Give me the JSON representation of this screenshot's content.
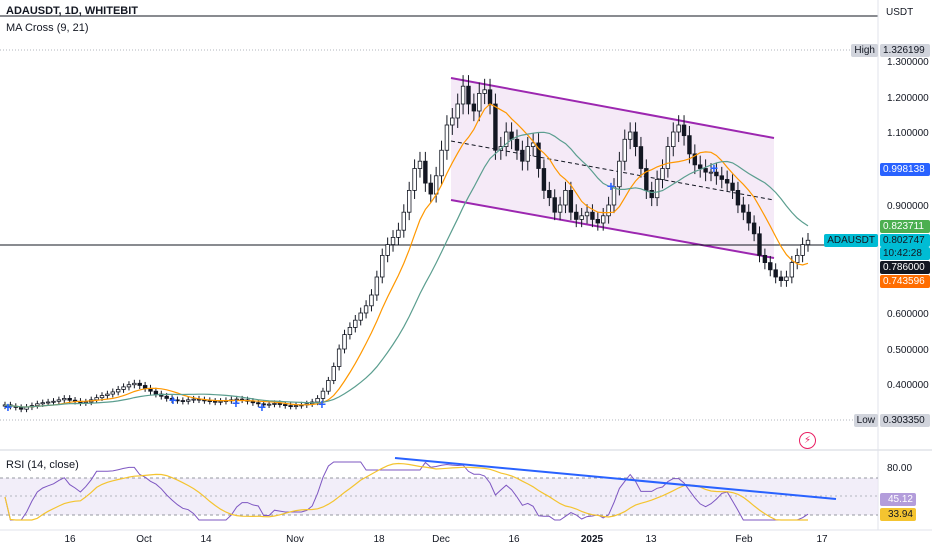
{
  "header": {
    "symbol_line": "ADAUSDT, 1D, WHITEBIT",
    "indicator_line": "MA Cross (9, 21)",
    "rsi_line": "RSI (14, close)",
    "currency": "USDT"
  },
  "colors": {
    "candle": "#131722",
    "ma_fast": "#ff9800",
    "ma_slow": "#5b9e8f",
    "channel_line": "#9c27b0",
    "channel_fill": "#f3e5f5",
    "rsi_line": "#7e57c2",
    "rsi_ma": "#f4c430",
    "trendline": "#2962ff",
    "cross_marker": "#2962ff"
  },
  "chart_data": {
    "type": "candlestick",
    "x_tick_labels": [
      "16",
      "Oct",
      "14",
      "Nov",
      "18",
      "Dec",
      "16",
      "2025",
      "13",
      "Feb",
      "17"
    ],
    "y_tick_labels": [
      "1.300000",
      "1.200000",
      "1.100000",
      "0.900000",
      "0.600000",
      "0.500000",
      "0.400000"
    ],
    "price_tags": [
      {
        "label": "High",
        "value": "1.326199"
      },
      {
        "label": "",
        "value": "0.998138"
      },
      {
        "label": "",
        "value": "0.823711"
      },
      {
        "label": "ADAUSDT",
        "value": "0.802747"
      },
      {
        "label": "",
        "value": "10:42:28"
      },
      {
        "label": "",
        "value": "0.786000"
      },
      {
        "label": "",
        "value": "0.743596"
      },
      {
        "label": "Low",
        "value": "0.303350"
      }
    ],
    "ma_cross": {
      "fast_period": 9,
      "slow_period": 21
    },
    "rsi": {
      "period": 14,
      "y_tick_labels": [
        "80.00"
      ],
      "value_tags": [
        "45.12",
        "33.94"
      ]
    },
    "candles_close": [
      0.342,
      0.338,
      0.335,
      0.33,
      0.336,
      0.34,
      0.345,
      0.348,
      0.35,
      0.352,
      0.356,
      0.36,
      0.355,
      0.352,
      0.348,
      0.35,
      0.356,
      0.362,
      0.368,
      0.372,
      0.378,
      0.385,
      0.392,
      0.398,
      0.402,
      0.396,
      0.388,
      0.38,
      0.372,
      0.366,
      0.36,
      0.356,
      0.354,
      0.352,
      0.356,
      0.358,
      0.356,
      0.354,
      0.352,
      0.35,
      0.352,
      0.354,
      0.356,
      0.358,
      0.356,
      0.352,
      0.348,
      0.345,
      0.342,
      0.344,
      0.346,
      0.343,
      0.34,
      0.338,
      0.34,
      0.342,
      0.345,
      0.35,
      0.36,
      0.38,
      0.41,
      0.45,
      0.5,
      0.54,
      0.56,
      0.58,
      0.6,
      0.62,
      0.65,
      0.7,
      0.76,
      0.79,
      0.81,
      0.83,
      0.88,
      0.94,
      1.0,
      1.02,
      0.96,
      0.93,
      0.98,
      1.05,
      1.12,
      1.14,
      1.18,
      1.23,
      1.18,
      1.16,
      1.21,
      1.22,
      1.18,
      1.05,
      1.06,
      1.1,
      1.08,
      1.05,
      1.02,
      1.06,
      1.07,
      1.0,
      0.94,
      0.92,
      0.88,
      0.9,
      0.94,
      0.88,
      0.86,
      0.87,
      0.88,
      0.86,
      0.85,
      0.87,
      0.9,
      0.95,
      1.02,
      1.08,
      1.1,
      1.06,
      1.0,
      0.94,
      0.92,
      0.97,
      1.0,
      1.06,
      1.1,
      1.12,
      1.09,
      1.04,
      1.01,
      1.0,
      0.99,
      0.99,
      0.98,
      0.97,
      0.96,
      0.94,
      0.9,
      0.88,
      0.85,
      0.82,
      0.76,
      0.74,
      0.72,
      0.7,
      0.69,
      0.7,
      0.74,
      0.76,
      0.79,
      0.802
    ],
    "annotations": [
      "descending channel (parallel lines)",
      "dashed midline",
      "RSI bearish trendline"
    ]
  }
}
